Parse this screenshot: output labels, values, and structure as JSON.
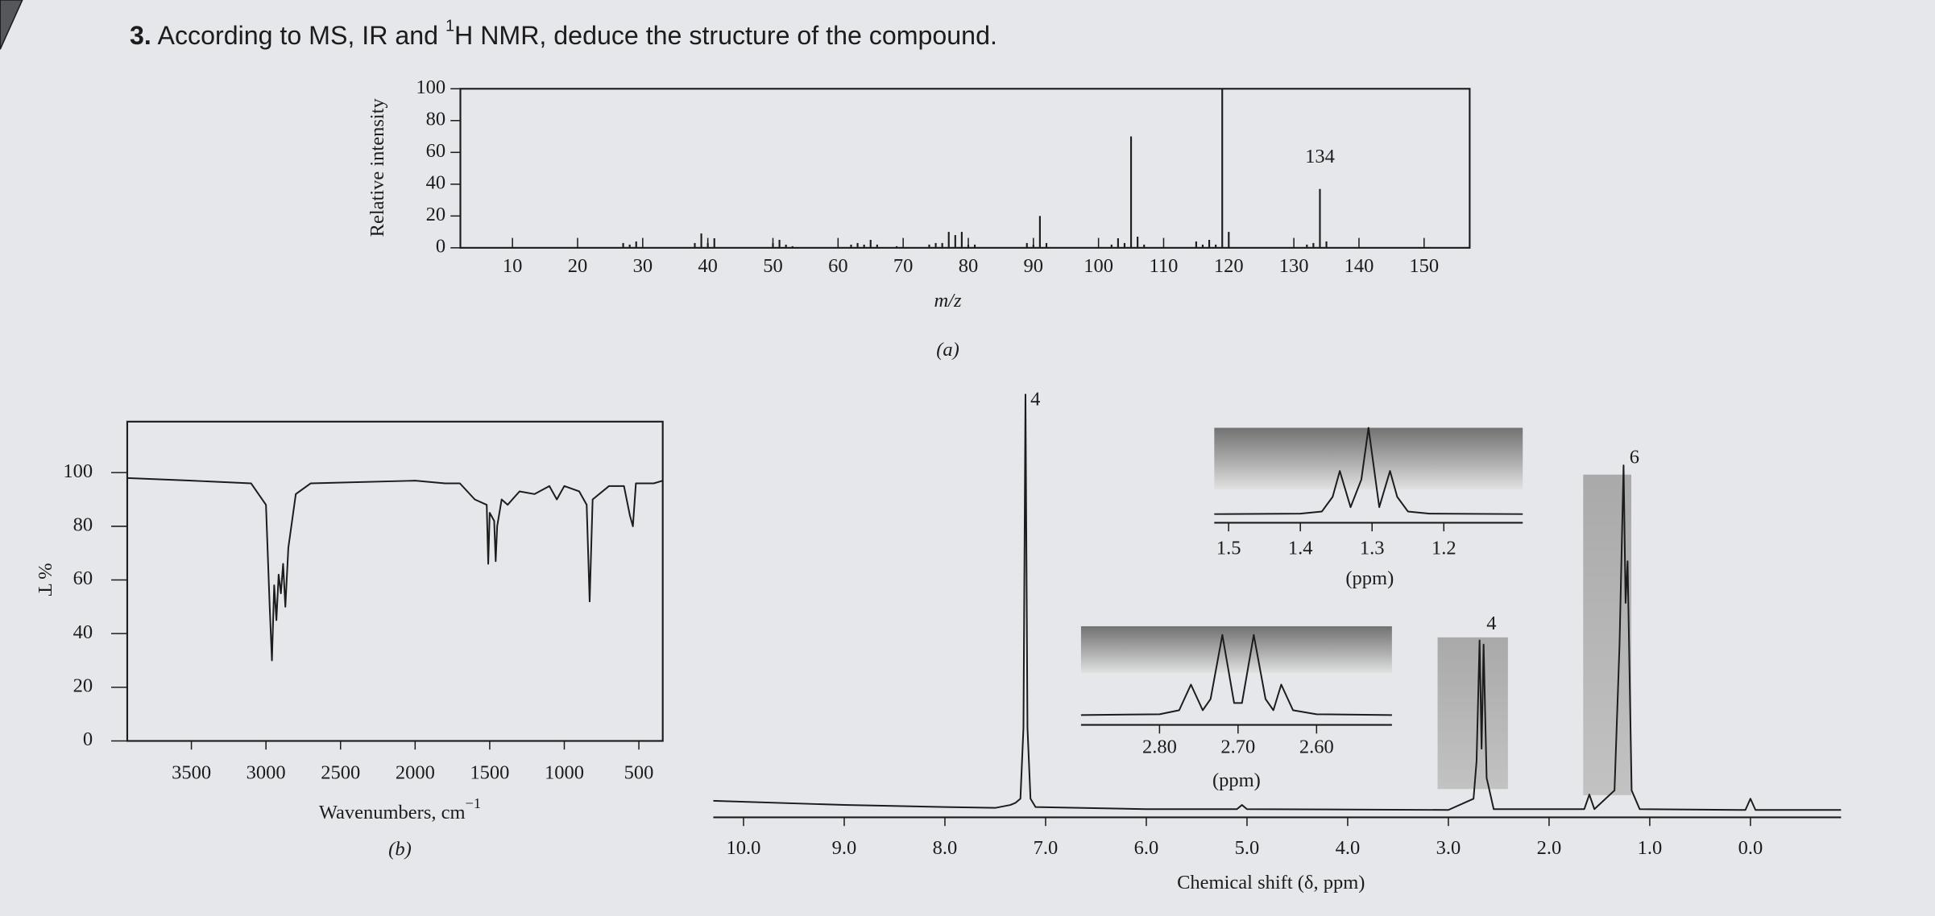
{
  "question": {
    "number": "3.",
    "text": "According to MS, IR and ",
    "superscript": "1",
    "text_after": "H NMR, deduce the structure of the compound."
  },
  "chart_data": [
    {
      "type": "bar",
      "caption": "(a)",
      "x_label": "m/z",
      "y_label": "Relative intensity",
      "color": "#222222",
      "x": [
        27,
        28,
        29,
        38,
        39,
        40,
        41,
        50,
        51,
        52,
        53,
        62,
        63,
        64,
        65,
        66,
        69,
        74,
        75,
        76,
        77,
        78,
        79,
        80,
        81,
        89,
        90,
        91,
        92,
        102,
        103,
        104,
        105,
        106,
        107,
        115,
        116,
        117,
        118,
        119,
        120,
        132,
        133,
        134,
        135
      ],
      "values": [
        3,
        2,
        4,
        3,
        9,
        3,
        6,
        3,
        5,
        2,
        1,
        2,
        3,
        2,
        5,
        2,
        1,
        2,
        3,
        3,
        10,
        8,
        10,
        2,
        2,
        3,
        2,
        20,
        3,
        2,
        6,
        3,
        70,
        7,
        2,
        4,
        2,
        5,
        2,
        100,
        10,
        2,
        3,
        37,
        4
      ],
      "annotations": [
        {
          "text": "134",
          "x": 134
        }
      ],
      "xlim": [
        2,
        157
      ],
      "ylim": [
        0,
        100
      ],
      "xticks": [
        10,
        20,
        30,
        40,
        50,
        60,
        70,
        80,
        90,
        100,
        110,
        120,
        130,
        140,
        150
      ],
      "yticks": [
        0,
        20,
        40,
        60,
        80,
        100
      ]
    },
    {
      "type": "line",
      "caption": "(b)",
      "x_label": "Wavenumbers, cm",
      "x_label_superscript": "−1",
      "y_label": "% T",
      "color": "#1a1a1a",
      "x": [
        3930,
        3500,
        3100,
        3050,
        3000,
        2975,
        2960,
        2945,
        2930,
        2915,
        2900,
        2885,
        2870,
        2850,
        2800,
        2700,
        2000,
        1800,
        1700,
        1600,
        1520,
        1510,
        1500,
        1470,
        1460,
        1450,
        1420,
        1380,
        1300,
        1200,
        1100,
        1050,
        1000,
        900,
        850,
        830,
        810,
        700,
        600,
        560,
        540,
        520,
        400,
        340
      ],
      "values": [
        98,
        97,
        96,
        92,
        88,
        50,
        30,
        58,
        45,
        62,
        55,
        66,
        50,
        72,
        92,
        96,
        97,
        96,
        96,
        90,
        88,
        66,
        85,
        82,
        67,
        80,
        90,
        88,
        93,
        92,
        95,
        90,
        95,
        93,
        88,
        52,
        90,
        95,
        95,
        84,
        80,
        96,
        96,
        97
      ],
      "xlim": [
        3930,
        340
      ],
      "ylim": [
        0,
        119
      ],
      "xticks": [
        3500,
        3000,
        2500,
        2000,
        1500,
        1000,
        500
      ],
      "yticks": [
        0,
        20,
        40,
        60,
        80,
        100
      ]
    },
    {
      "type": "line",
      "x_label": "Chemical shift (δ, ppm)",
      "color": "#1a1a1a",
      "x": [
        10.3,
        9.0,
        8.0,
        7.5,
        7.35,
        7.3,
        7.25,
        7.22,
        7.2,
        7.18,
        7.15,
        7.1,
        6.0,
        5.1,
        5.05,
        5.0,
        3.0,
        2.75,
        2.72,
        2.69,
        2.67,
        2.65,
        2.62,
        2.55,
        1.65,
        1.6,
        1.55,
        1.35,
        1.3,
        1.26,
        1.24,
        1.22,
        1.18,
        1.1,
        0.05,
        0.0,
        -0.05,
        -0.9
      ],
      "values": [
        2.5,
        1.5,
        1,
        0.8,
        1.5,
        2,
        3,
        20,
        100,
        20,
        3,
        1,
        0.5,
        0.5,
        1.5,
        0.5,
        0.3,
        3,
        12,
        41,
        15,
        40,
        8,
        0.5,
        0.5,
        4,
        0.5,
        5,
        40,
        83,
        50,
        60,
        5,
        0.5,
        0.3,
        3,
        0.3,
        0.3
      ],
      "annotations": [
        {
          "text": "4",
          "x": 7.2
        },
        {
          "text": "4",
          "x": 2.67
        },
        {
          "text": "6",
          "x": 1.25
        }
      ],
      "xlim": [
        10.3,
        -0.9
      ],
      "xticks": [
        {
          "value": 10,
          "label": "10.0"
        },
        {
          "value": 9,
          "label": "9.0"
        },
        {
          "value": 8,
          "label": "8.0"
        },
        {
          "value": 7,
          "label": "7.0"
        },
        {
          "value": 6,
          "label": "6.0"
        },
        {
          "value": 5,
          "label": "5.0"
        },
        {
          "value": 4,
          "label": "4.0"
        },
        {
          "value": 3,
          "label": "3.0"
        },
        {
          "value": 2,
          "label": "2.0"
        },
        {
          "value": 1,
          "label": "1.0"
        },
        {
          "value": 0,
          "label": "0.0"
        }
      ]
    },
    {
      "type": "line",
      "x_label": "(ppm)",
      "color": "#1a1a1a",
      "x": [
        1.52,
        1.4,
        1.37,
        1.355,
        1.345,
        1.33,
        1.315,
        1.305,
        1.29,
        1.275,
        1.265,
        1.25,
        1.22,
        1.09
      ],
      "values": [
        0,
        0.5,
        3,
        20,
        50,
        8,
        40,
        100,
        8,
        50,
        20,
        3,
        0.5,
        0
      ],
      "xlim": [
        1.52,
        1.09
      ],
      "xticks": [
        1.5,
        1.4,
        1.3,
        1.2
      ]
    },
    {
      "type": "line",
      "x_label": "(ppm)",
      "color": "#1a1a1a",
      "x": [
        2.9,
        2.8,
        2.775,
        2.76,
        2.745,
        2.735,
        2.72,
        2.705,
        2.695,
        2.68,
        2.665,
        2.655,
        2.645,
        2.63,
        2.6,
        2.504
      ],
      "values": [
        0,
        1,
        6,
        38,
        6,
        20,
        100,
        15,
        15,
        100,
        20,
        6,
        38,
        6,
        1,
        0
      ],
      "xlim": [
        2.9,
        2.504
      ],
      "xticks": [
        {
          "value": 2.8,
          "label": "2.80"
        },
        {
          "value": 2.7,
          "label": "2.70"
        },
        {
          "value": 2.6,
          "label": "2.60"
        }
      ]
    }
  ]
}
